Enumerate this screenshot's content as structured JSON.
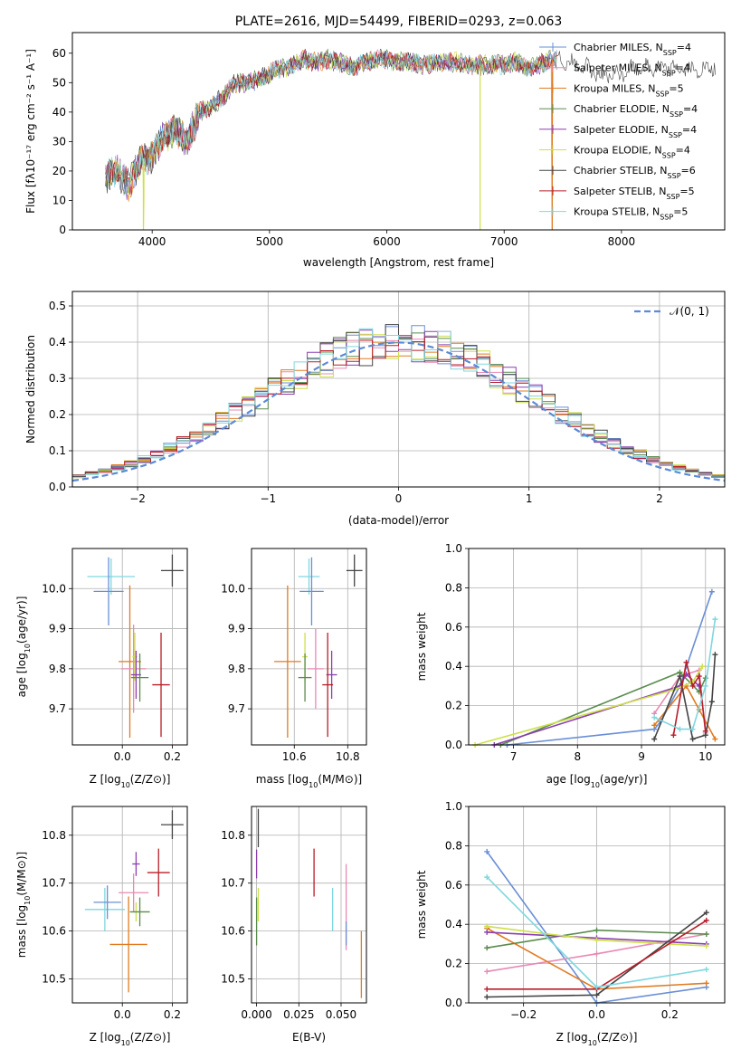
{
  "colors": {
    "Chabrier MILES": "#6a8fd6",
    "Salpeter MILES": "#e889b5",
    "Kroupa MILES": "#e07b22",
    "Chabrier ELODIE": "#5a8c4e",
    "Salpeter ELODIE": "#8b3fb0",
    "Kroupa ELODIE": "#cde04a",
    "Chabrier STELIB": "#444444",
    "Salpeter STELIB": "#b81d28",
    "Kroupa STELIB": "#7fd7df",
    "normal": "#5b8ad6"
  },
  "chart_data": [
    {
      "id": "spectrum",
      "type": "line",
      "title": "PLATE=2616, MJD=54499, FIBERID=0293, z=0.063",
      "xlabel": "wavelength [Angstrom, rest frame]",
      "ylabel": "Flux [fλ10⁻¹⁷ erg cm⁻² s⁻¹ A⁻¹]",
      "xlim": [
        3320,
        8880
      ],
      "ylim": [
        0,
        67
      ],
      "xticks": [
        "4000",
        "5000",
        "6000",
        "7000",
        "8000"
      ],
      "yticks": [
        "0",
        "10",
        "20",
        "30",
        "40",
        "50",
        "60"
      ],
      "legend_position": "top-right",
      "legend": [
        {
          "label": "Chabrier MILES, N",
          "sub": "SSP",
          "tail": "=4"
        },
        {
          "label": "Salpeter MILES, N",
          "sub": "SSP",
          "tail": "=4"
        },
        {
          "label": "Kroupa MILES, N",
          "sub": "SSP",
          "tail": "=5"
        },
        {
          "label": "Chabrier ELODIE, N",
          "sub": "SSP",
          "tail": "=4"
        },
        {
          "label": "Salpeter ELODIE, N",
          "sub": "SSP",
          "tail": "=4"
        },
        {
          "label": "Kroupa ELODIE, N",
          "sub": "SSP",
          "tail": "=4"
        },
        {
          "label": "Chabrier STELIB, N",
          "sub": "SSP",
          "tail": "=6"
        },
        {
          "label": "Salpeter STELIB, N",
          "sub": "SSP",
          "tail": "=5"
        },
        {
          "label": "Kroupa STELIB, N",
          "sub": "SSP",
          "tail": "=5"
        }
      ],
      "envelope_x": [
        3600,
        3700,
        3800,
        3900,
        4000,
        4100,
        4200,
        4300,
        4400,
        4500,
        4600,
        4700,
        4800,
        4900,
        5000,
        5100,
        5200,
        5300,
        5400,
        5500,
        5600,
        5700,
        5800,
        5900,
        6000,
        6100,
        6200,
        6300,
        6400,
        6500,
        6600,
        6700,
        6800,
        6900,
        7000,
        7100,
        7200,
        7300,
        7400,
        7500,
        7600,
        7700,
        7800,
        7900,
        8000,
        8100,
        8200,
        8300,
        8400,
        8500,
        8600,
        8700,
        8800
      ],
      "envelope_y": [
        18,
        20,
        15,
        24,
        25,
        32,
        34,
        30,
        40,
        42,
        45,
        50,
        50,
        51,
        53,
        55,
        56,
        58,
        57,
        58,
        57,
        55,
        57,
        58,
        58,
        57,
        57,
        56,
        57,
        57,
        57,
        56,
        56,
        56,
        56,
        57,
        55,
        56,
        58,
        58,
        56,
        55,
        53,
        52,
        53,
        55,
        55,
        55,
        55,
        55,
        54,
        54,
        55
      ],
      "drops": [
        {
          "x": 3925,
          "series": "Kroupa ELODIE"
        },
        {
          "x": 6795,
          "series": "Kroupa ELODIE"
        },
        {
          "x": 7410,
          "series": "Kroupa MILES"
        }
      ]
    },
    {
      "id": "residuals",
      "type": "histogram",
      "xlabel": "(data-model)/error",
      "ylabel": "Normed distribution",
      "xlim": [
        -2.5,
        2.5
      ],
      "ylim": [
        0,
        0.54
      ],
      "xticks": [
        "−2",
        "−1",
        "0",
        "1",
        "2"
      ],
      "yticks": [
        "0.0",
        "0.1",
        "0.2",
        "0.3",
        "0.4",
        "0.5"
      ],
      "bin_width": 0.1,
      "legend": {
        "label": "𝒩(0, 1)"
      },
      "legend_position": "top-right",
      "grid": true
    },
    {
      "id": "age-Z",
      "type": "errorbar",
      "xlabel_pre": "Z [log",
      "xlabel_sub": "10",
      "xlabel_post": "(Z/Z⊙)]",
      "ylabel_pre": "age  [log",
      "ylabel_sub": "10",
      "ylabel_post": "(age/yr)]",
      "xlim": [
        -0.2,
        0.26
      ],
      "ylim": [
        9.61,
        10.1
      ],
      "xticks": [
        {
          "v": 0.0,
          "t": "0.0"
        },
        {
          "v": 0.2,
          "t": "0.2"
        }
      ],
      "yticks": [
        {
          "v": 9.7,
          "t": "9.7"
        },
        {
          "v": 9.8,
          "t": "9.8"
        },
        {
          "v": 9.9,
          "t": "9.9"
        },
        {
          "v": 10.0,
          "t": "10.0"
        }
      ],
      "points": [
        {
          "s": "Kroupa STELIB",
          "x": -0.045,
          "xe": 0.095,
          "y": 10.03,
          "ye": 0.045
        },
        {
          "s": "Chabrier MILES",
          "x": -0.055,
          "xe": 0.06,
          "y": 9.993,
          "ye": 0.085
        },
        {
          "s": "Chabrier STELIB",
          "x": 0.2,
          "xe": 0.045,
          "y": 10.045,
          "ye": 0.04
        },
        {
          "s": "Kroupa MILES",
          "x": 0.03,
          "xe": 0.045,
          "y": 9.818,
          "ye": 0.19
        },
        {
          "s": "Salpeter MILES",
          "x": 0.045,
          "xe": 0.05,
          "y": 9.8,
          "ye": 0.11
        },
        {
          "s": "Kroupa ELODIE",
          "x": 0.05,
          "xe": 0.01,
          "y": 9.83,
          "ye": 0.06
        },
        {
          "s": "Salpeter ELODIE",
          "x": 0.055,
          "xe": 0.02,
          "y": 9.785,
          "ye": 0.06
        },
        {
          "s": "Chabrier ELODIE",
          "x": 0.07,
          "xe": 0.035,
          "y": 9.778,
          "ye": 0.06
        },
        {
          "s": "Salpeter STELIB",
          "x": 0.155,
          "xe": 0.035,
          "y": 9.76,
          "ye": 0.13
        }
      ]
    },
    {
      "id": "age-mass",
      "type": "errorbar",
      "xlabel_pre": "mass [log",
      "xlabel_sub": "10",
      "xlabel_post": "(M/M⊙)]",
      "xlim": [
        10.44,
        10.87
      ],
      "ylim": [
        9.61,
        10.1
      ],
      "xticks": [
        {
          "v": 10.6,
          "t": "10.6"
        },
        {
          "v": 10.8,
          "t": "10.8"
        }
      ],
      "yticks": [
        {
          "v": 9.7,
          "t": "9.7"
        },
        {
          "v": 9.8,
          "t": "9.8"
        },
        {
          "v": 9.9,
          "t": "9.9"
        },
        {
          "v": 10.0,
          "t": "10.0"
        }
      ],
      "points": [
        {
          "s": "Kroupa STELIB",
          "x": 10.655,
          "xe": 0.04,
          "y": 10.03,
          "ye": 0.045
        },
        {
          "s": "Chabrier MILES",
          "x": 10.665,
          "xe": 0.045,
          "y": 9.993,
          "ye": 0.085
        },
        {
          "s": "Chabrier STELIB",
          "x": 10.825,
          "xe": 0.03,
          "y": 10.045,
          "ye": 0.04
        },
        {
          "s": "Kroupa MILES",
          "x": 10.575,
          "xe": 0.05,
          "y": 9.818,
          "ye": 0.19
        },
        {
          "s": "Salpeter MILES",
          "x": 10.68,
          "xe": 0.03,
          "y": 9.8,
          "ye": 0.1
        },
        {
          "s": "Kroupa ELODIE",
          "x": 10.64,
          "xe": 0.01,
          "y": 9.83,
          "ye": 0.06
        },
        {
          "s": "Salpeter ELODIE",
          "x": 10.74,
          "xe": 0.02,
          "y": 9.785,
          "ye": 0.06
        },
        {
          "s": "Chabrier ELODIE",
          "x": 10.64,
          "xe": 0.025,
          "y": 9.778,
          "ye": 0.06
        },
        {
          "s": "Salpeter STELIB",
          "x": 10.725,
          "xe": 0.02,
          "y": 9.76,
          "ye": 0.13
        }
      ]
    },
    {
      "id": "mass-Z",
      "type": "errorbar",
      "xlabel_pre": "Z [log",
      "xlabel_sub": "10",
      "xlabel_post": "(Z/Z⊙)]",
      "ylabel_pre": "mass [log",
      "ylabel_sub": "10",
      "ylabel_post": "(M/M⊙)]",
      "xlim": [
        -0.2,
        0.26
      ],
      "ylim": [
        10.45,
        10.86
      ],
      "xticks": [
        {
          "v": 0.0,
          "t": "0.0"
        },
        {
          "v": 0.2,
          "t": "0.2"
        }
      ],
      "yticks": [
        {
          "v": 10.5,
          "t": "10.5"
        },
        {
          "v": 10.6,
          "t": "10.6"
        },
        {
          "v": 10.7,
          "t": "10.7"
        },
        {
          "v": 10.8,
          "t": "10.8"
        }
      ],
      "points": [
        {
          "s": "Kroupa STELIB",
          "x": -0.07,
          "xe": 0.08,
          "y": 10.645,
          "ye": 0.045
        },
        {
          "s": "Chabrier MILES",
          "x": -0.06,
          "xe": 0.055,
          "y": 10.66,
          "ye": 0.035
        },
        {
          "s": "Chabrier STELIB",
          "x": 0.2,
          "xe": 0.045,
          "y": 10.822,
          "ye": 0.03
        },
        {
          "s": "Kroupa MILES",
          "x": 0.025,
          "xe": 0.075,
          "y": 10.572,
          "ye": 0.1
        },
        {
          "s": "Salpeter MILES",
          "x": 0.045,
          "xe": 0.06,
          "y": 10.68,
          "ye": 0.04
        },
        {
          "s": "Kroupa ELODIE",
          "x": 0.055,
          "xe": 0.01,
          "y": 10.64,
          "ye": 0.02
        },
        {
          "s": "Salpeter ELODIE",
          "x": 0.055,
          "xe": 0.015,
          "y": 10.74,
          "ye": 0.025
        },
        {
          "s": "Chabrier ELODIE",
          "x": 0.07,
          "xe": 0.04,
          "y": 10.64,
          "ye": 0.03
        },
        {
          "s": "Salpeter STELIB",
          "x": 0.145,
          "xe": 0.045,
          "y": 10.722,
          "ye": 0.05
        }
      ]
    },
    {
      "id": "mass-ebv",
      "type": "errorbar",
      "xlabel": "E(B-V)",
      "xlim": [
        -0.003,
        0.065
      ],
      "ylim": [
        10.45,
        10.86
      ],
      "xticks": [
        {
          "v": 0.0,
          "t": "0.000"
        },
        {
          "v": 0.025,
          "t": "0.025"
        },
        {
          "v": 0.05,
          "t": "0.050"
        }
      ],
      "yticks": [
        {
          "v": 10.5,
          "t": "10.5"
        },
        {
          "v": 10.6,
          "t": "10.6"
        },
        {
          "v": 10.7,
          "t": "10.7"
        },
        {
          "v": 10.8,
          "t": "10.8"
        }
      ],
      "points": [
        {
          "s": "Salpeter ELODIE",
          "x": 0.0,
          "xe": 0,
          "y": 10.74,
          "ye": 0.03
        },
        {
          "s": "Chabrier ELODIE",
          "x": 0.0,
          "xe": 0,
          "y": 10.62,
          "ye": 0.05
        },
        {
          "s": "Kroupa ELODIE",
          "x": 0.001,
          "xe": 0,
          "y": 10.655,
          "ye": 0.035
        },
        {
          "s": "Chabrier STELIB",
          "x": 0.001,
          "xe": 0,
          "y": 10.815,
          "ye": 0.04
        },
        {
          "s": "Salpeter STELIB",
          "x": 0.034,
          "xe": 0,
          "y": 10.722,
          "ye": 0.05
        },
        {
          "s": "Kroupa STELIB",
          "x": 0.045,
          "xe": 0,
          "y": 10.645,
          "ye": 0.045
        },
        {
          "s": "Salpeter MILES",
          "x": 0.053,
          "xe": 0,
          "y": 10.65,
          "ye": 0.09
        },
        {
          "s": "Chabrier MILES",
          "x": 0.053,
          "xe": 0,
          "y": 10.595,
          "ye": 0.025
        },
        {
          "s": "Kroupa MILES",
          "x": 0.062,
          "xe": 0,
          "y": 10.53,
          "ye": 0.07
        }
      ]
    },
    {
      "id": "weight-age",
      "type": "line",
      "xlabel_pre": "age  [log",
      "xlabel_sub": "10",
      "xlabel_post": "(age/yr)]",
      "ylabel": "mass weight",
      "xlim": [
        6.3,
        10.3
      ],
      "ylim": [
        0,
        1
      ],
      "grid": true,
      "xticks": [
        {
          "v": 7,
          "t": "7"
        },
        {
          "v": 8,
          "t": "8"
        },
        {
          "v": 9,
          "t": "9"
        },
        {
          "v": 10,
          "t": "10"
        }
      ],
      "yticks": [
        {
          "v": 0,
          "t": "0.0"
        },
        {
          "v": 0.2,
          "t": "0.2"
        },
        {
          "v": 0.4,
          "t": "0.4"
        },
        {
          "v": 0.6,
          "t": "0.6"
        },
        {
          "v": 0.8,
          "t": "0.8"
        },
        {
          "v": 1.0,
          "t": "1.0"
        }
      ],
      "series": [
        {
          "s": "Chabrier MILES",
          "x": [
            6.9,
            9.2,
            9.3,
            9.6,
            10.1
          ],
          "y": [
            0.0,
            0.08,
            0.12,
            0.3,
            0.78
          ]
        },
        {
          "s": "Salpeter MILES",
          "x": [
            9.2,
            9.6,
            9.9,
            10.0
          ],
          "y": [
            0.16,
            0.35,
            0.38,
            0.06
          ]
        },
        {
          "s": "Kroupa MILES",
          "x": [
            9.2,
            9.7,
            9.9,
            10.15
          ],
          "y": [
            0.1,
            0.3,
            0.18,
            0.03
          ]
        },
        {
          "s": "Chabrier ELODIE",
          "x": [
            6.8,
            9.6,
            9.9,
            10.0
          ],
          "y": [
            0.0,
            0.37,
            0.27,
            0.34
          ]
        },
        {
          "s": "Salpeter ELODIE",
          "x": [
            6.7,
            9.6,
            9.7,
            9.9
          ],
          "y": [
            0.0,
            0.3,
            0.36,
            0.3
          ]
        },
        {
          "s": "Kroupa ELODIE",
          "x": [
            6.4,
            9.5,
            9.8,
            9.95
          ],
          "y": [
            0.0,
            0.28,
            0.32,
            0.4
          ]
        },
        {
          "s": "Chabrier STELIB",
          "x": [
            9.2,
            9.6,
            9.8,
            10.0,
            10.1,
            10.15
          ],
          "y": [
            0.03,
            0.35,
            0.03,
            0.05,
            0.22,
            0.46
          ]
        },
        {
          "s": "Salpeter STELIB",
          "x": [
            9.5,
            9.7,
            9.8,
            9.9,
            10.0
          ],
          "y": [
            0.05,
            0.42,
            0.3,
            0.35,
            0.07
          ]
        },
        {
          "s": "Kroupa STELIB",
          "x": [
            9.2,
            9.6,
            9.8,
            10.0,
            10.15
          ],
          "y": [
            0.14,
            0.08,
            0.08,
            0.3,
            0.64
          ]
        }
      ]
    },
    {
      "id": "weight-Z",
      "type": "line",
      "xlabel_pre": "Z [log",
      "xlabel_sub": "10",
      "xlabel_post": "(Z/Z⊙)]",
      "ylabel": "mass weight",
      "xlim": [
        -0.35,
        0.35
      ],
      "ylim": [
        0,
        1
      ],
      "grid": true,
      "xticks": [
        {
          "v": -0.2,
          "t": "−0.2"
        },
        {
          "v": 0.0,
          "t": "0.0"
        },
        {
          "v": 0.2,
          "t": "0.2"
        }
      ],
      "yticks": [
        {
          "v": 0,
          "t": "0.0"
        },
        {
          "v": 0.2,
          "t": "0.2"
        },
        {
          "v": 0.4,
          "t": "0.4"
        },
        {
          "v": 0.6,
          "t": "0.6"
        },
        {
          "v": 0.8,
          "t": "0.8"
        },
        {
          "v": 1.0,
          "t": "1.0"
        }
      ],
      "series": [
        {
          "s": "Chabrier MILES",
          "x": [
            -0.3,
            0.0,
            0.3
          ],
          "y": [
            0.77,
            0.0,
            0.08
          ]
        },
        {
          "s": "Salpeter MILES",
          "x": [
            -0.3,
            0.0,
            0.3
          ],
          "y": [
            0.16,
            0.25,
            0.35
          ]
        },
        {
          "s": "Kroupa MILES",
          "x": [
            -0.3,
            0.0,
            0.3
          ],
          "y": [
            0.38,
            0.07,
            0.1
          ]
        },
        {
          "s": "Chabrier ELODIE",
          "x": [
            -0.3,
            0.0,
            0.3
          ],
          "y": [
            0.28,
            0.37,
            0.35
          ]
        },
        {
          "s": "Salpeter ELODIE",
          "x": [
            -0.3,
            0.0,
            0.3
          ],
          "y": [
            0.36,
            0.33,
            0.3
          ]
        },
        {
          "s": "Kroupa ELODIE",
          "x": [
            -0.3,
            0.0,
            0.3
          ],
          "y": [
            0.39,
            0.32,
            0.29
          ]
        },
        {
          "s": "Chabrier STELIB",
          "x": [
            -0.3,
            0.0,
            0.3
          ],
          "y": [
            0.03,
            0.04,
            0.46
          ]
        },
        {
          "s": "Salpeter STELIB",
          "x": [
            -0.3,
            0.0,
            0.3
          ],
          "y": [
            0.07,
            0.07,
            0.42
          ]
        },
        {
          "s": "Kroupa STELIB",
          "x": [
            -0.3,
            0.0,
            0.3
          ],
          "y": [
            0.64,
            0.08,
            0.17
          ]
        }
      ]
    }
  ]
}
